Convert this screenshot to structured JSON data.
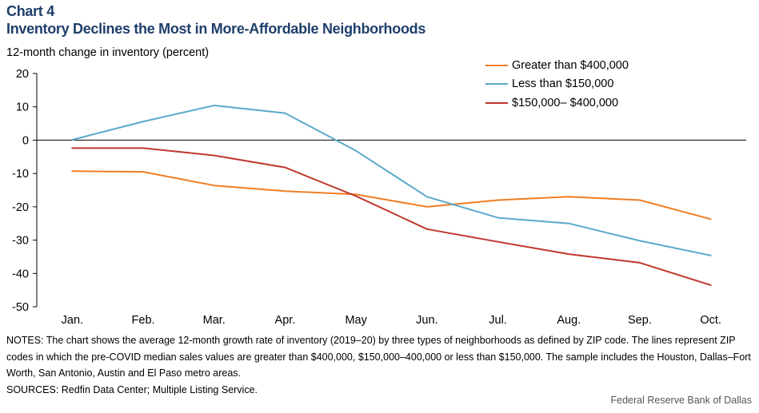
{
  "header": {
    "chart_number": "Chart 4",
    "title": "Inventory Declines the Most in More-Affordable Neighborhoods",
    "ylabel": "12-month change in inventory  (percent)"
  },
  "colors": {
    "greater_400k": "#ef7d22",
    "less_150k": "#5ba8c9",
    "mid_150_400k": "#c0362c",
    "axis": "#000000"
  },
  "chart_data": {
    "type": "line",
    "title": "Inventory Declines the Most in More-Affordable Neighborhoods",
    "xlabel": "",
    "ylabel": "12-month change in inventory  (percent)",
    "categories": [
      "Jan.",
      "Feb.",
      "Mar.",
      "Apr.",
      "May",
      "Jun.",
      "Jul.",
      "Aug.",
      "Sep.",
      "Oct."
    ],
    "ylim": [
      -50,
      20
    ],
    "yticks": [
      20,
      10,
      0,
      -10,
      -20,
      -30,
      -40,
      -50
    ],
    "ytick_labels": [
      "20",
      "10",
      "0",
      "-10",
      "-20",
      "-30",
      "-40",
      "-50"
    ],
    "grid": false,
    "legend_position": "top-right",
    "series": [
      {
        "name": "Greater than $400,000",
        "color": "#ef7d22",
        "values": [
          -9.3,
          -9.5,
          -13.6,
          -15.3,
          -16.3,
          -20.0,
          -18.0,
          -17.0,
          -18.0,
          -23.7
        ]
      },
      {
        "name": "Less than $150,000",
        "color": "#5ba8c9",
        "values": [
          0.1,
          5.6,
          10.4,
          8.1,
          -3.2,
          -17.0,
          -23.3,
          -25.0,
          -30.2,
          -34.6
        ]
      },
      {
        "name": "$150,000– $400,000",
        "color": "#c0362c",
        "values": [
          -2.4,
          -2.4,
          -4.6,
          -8.2,
          -16.8,
          -26.7,
          -30.5,
          -34.2,
          -36.8,
          -43.5
        ]
      }
    ]
  },
  "notes": {
    "text": "NOTES: The chart shows the average 12-month growth rate of inventory (2019–20) by three types of neighborhoods as defined by ZIP code. The lines represent ZIP codes in which the pre-COVID median sales values are greater than $400,000, $150,000–400,000 or less than $150,000. The sample includes the Houston, Dallas–Fort Worth, San Antonio, Austin and El Paso metro areas.",
    "sources": "SOURCES: Redfin Data Center; Multiple  Listing Service."
  },
  "footer": {
    "credit": "Federal Reserve Bank of Dallas"
  }
}
